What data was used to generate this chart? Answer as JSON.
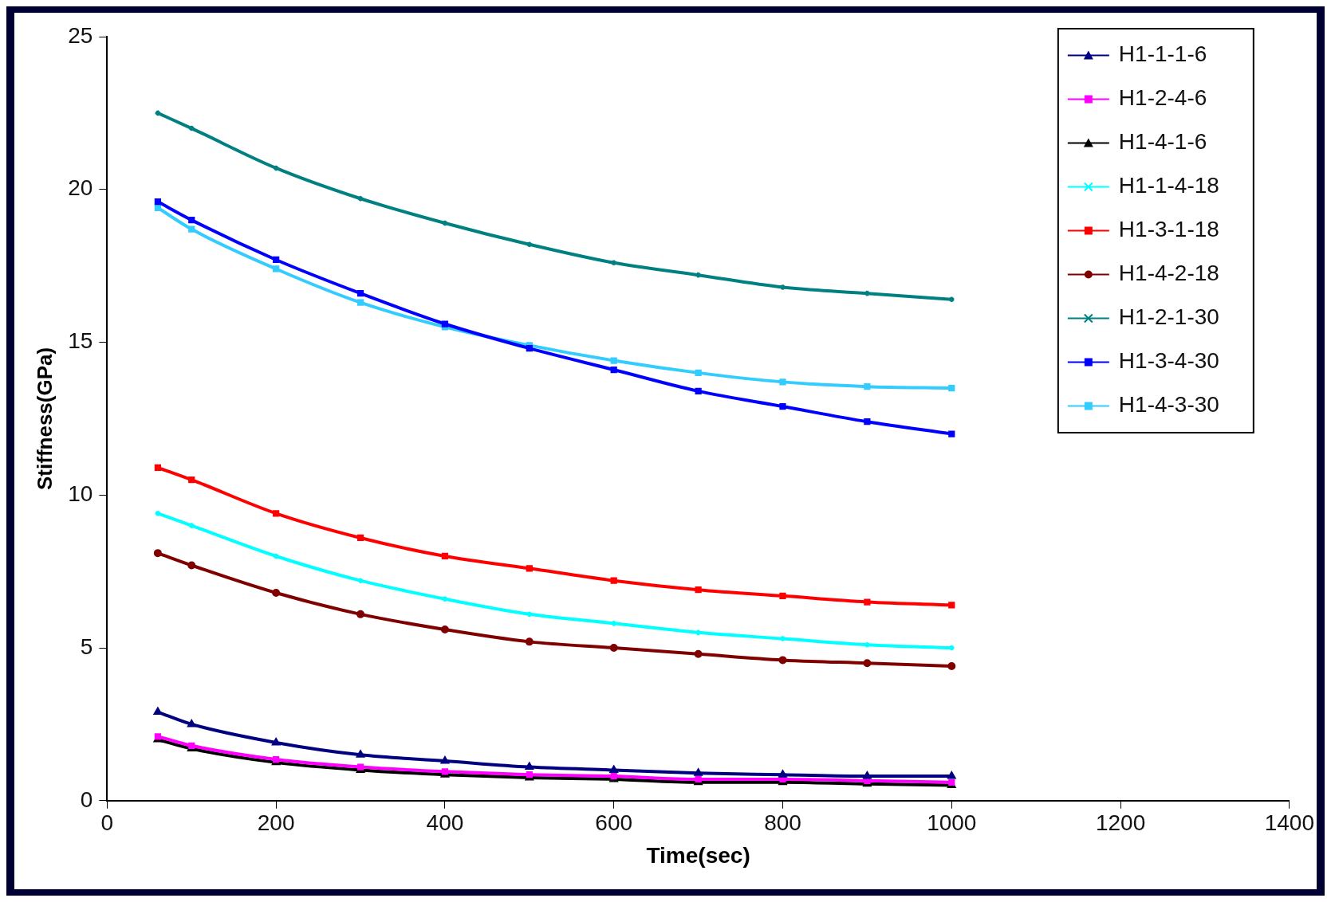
{
  "chart_data": {
    "type": "line",
    "xlabel": "Time(sec)",
    "ylabel": "Stiffness(GPa)",
    "x": [
      60,
      100,
      200,
      300,
      400,
      500,
      600,
      700,
      800,
      900,
      1000
    ],
    "xlim": [
      0,
      1400
    ],
    "xticks": [
      0,
      200,
      400,
      600,
      800,
      1000,
      1200,
      1400
    ],
    "ylim": [
      0,
      25
    ],
    "yticks": [
      0,
      5,
      10,
      15,
      20,
      25
    ],
    "grid": false,
    "legend": "top right",
    "line_style": "solid",
    "series": [
      {
        "name": "H1-1-1-6",
        "color": "#000080",
        "marker": "triangle",
        "values": [
          2.9,
          2.5,
          1.9,
          1.5,
          1.3,
          1.1,
          1.0,
          0.9,
          0.85,
          0.8,
          0.8
        ]
      },
      {
        "name": "H1-2-4-6",
        "color": "#ff00ff",
        "marker": "square",
        "values": [
          2.1,
          1.8,
          1.35,
          1.1,
          0.95,
          0.85,
          0.8,
          0.7,
          0.7,
          0.65,
          0.6
        ]
      },
      {
        "name": "H1-4-1-6",
        "color": "#000000",
        "marker": "triangle",
        "values": [
          2.0,
          1.7,
          1.25,
          1.0,
          0.85,
          0.75,
          0.7,
          0.6,
          0.6,
          0.55,
          0.5
        ]
      },
      {
        "name": "H1-1-4-18",
        "color": "#00ffff",
        "marker": "cross",
        "values": [
          9.4,
          9.0,
          8.0,
          7.2,
          6.6,
          6.1,
          5.8,
          5.5,
          5.3,
          5.1,
          5.0
        ]
      },
      {
        "name": "H1-3-1-18",
        "color": "#ff0000",
        "marker": "square",
        "values": [
          10.9,
          10.5,
          9.4,
          8.6,
          8.0,
          7.6,
          7.2,
          6.9,
          6.7,
          6.5,
          6.4
        ]
      },
      {
        "name": "H1-4-2-18",
        "color": "#800000",
        "marker": "circle",
        "values": [
          8.1,
          7.7,
          6.8,
          6.1,
          5.6,
          5.2,
          5.0,
          4.8,
          4.6,
          4.5,
          4.4
        ]
      },
      {
        "name": "H1-2-1-30",
        "color": "#008080",
        "marker": "cross",
        "values": [
          22.5,
          22.0,
          20.7,
          19.7,
          18.9,
          18.2,
          17.6,
          17.2,
          16.8,
          16.6,
          16.4
        ]
      },
      {
        "name": "H1-3-4-30",
        "color": "#0000ff",
        "marker": "square",
        "values": [
          19.6,
          19.0,
          17.7,
          16.6,
          15.6,
          14.8,
          14.1,
          13.4,
          12.9,
          12.4,
          12.0
        ]
      },
      {
        "name": "H1-4-3-30",
        "color": "#33ccff",
        "marker": "square",
        "values": [
          19.4,
          18.7,
          17.4,
          16.3,
          15.5,
          14.9,
          14.4,
          14.0,
          13.7,
          13.55,
          13.5
        ]
      }
    ]
  }
}
